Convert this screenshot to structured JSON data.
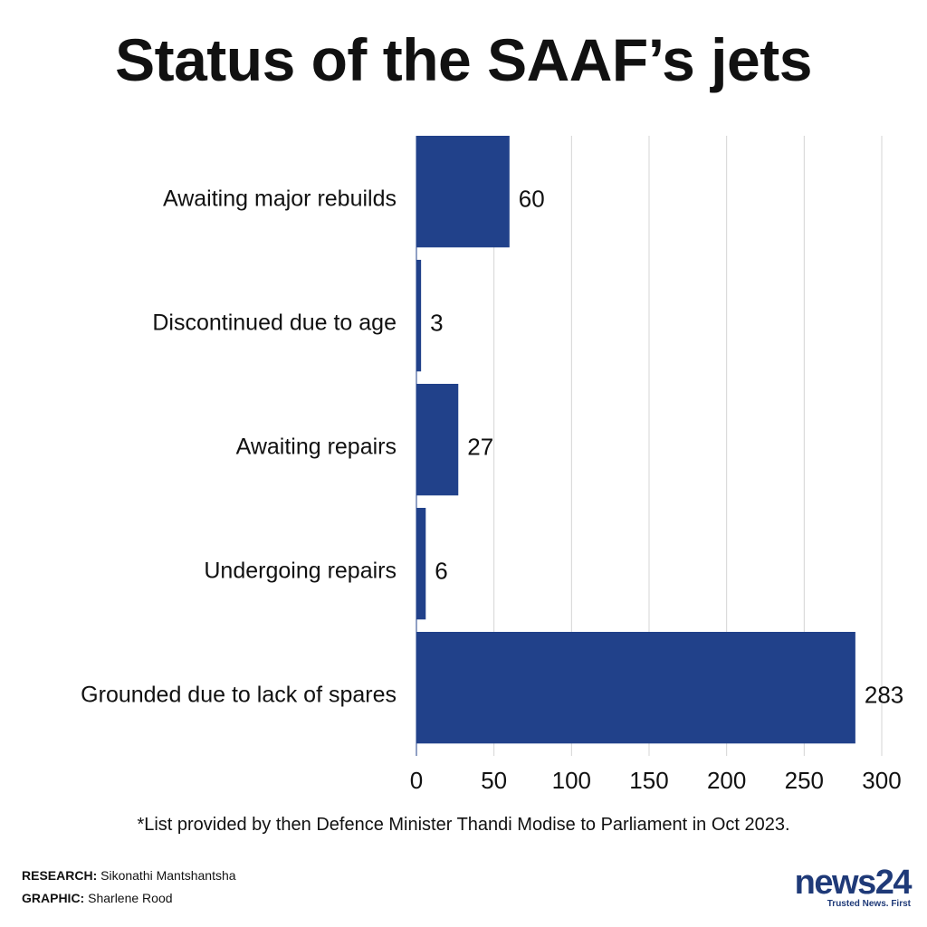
{
  "chart_data": {
    "type": "bar",
    "orientation": "horizontal",
    "title": "Status of the SAAF’s jets",
    "categories": [
      "Awaiting major rebuilds",
      "Discontinued due to age",
      "Awaiting repairs",
      "Undergoing repairs",
      "Grounded due to lack of spares"
    ],
    "values": [
      60,
      3,
      27,
      6,
      283
    ],
    "xlim": [
      0,
      300
    ],
    "xticks": [
      0,
      50,
      100,
      150,
      200,
      250,
      300
    ],
    "grid": true,
    "xlabel": "",
    "ylabel": "",
    "bar_color": "#21418a"
  },
  "footnote": "*List provided by then Defence Minister Thandi Modise to Parliament in Oct 2023.",
  "credits": {
    "research_label": "RESEARCH:",
    "research_name": "Sikonathi Mantshantsha",
    "graphic_label": "GRAPHIC:",
    "graphic_name": "Sharlene Rood"
  },
  "logo": {
    "word": "news",
    "number": "24",
    "tagline": "Trusted News. First"
  }
}
